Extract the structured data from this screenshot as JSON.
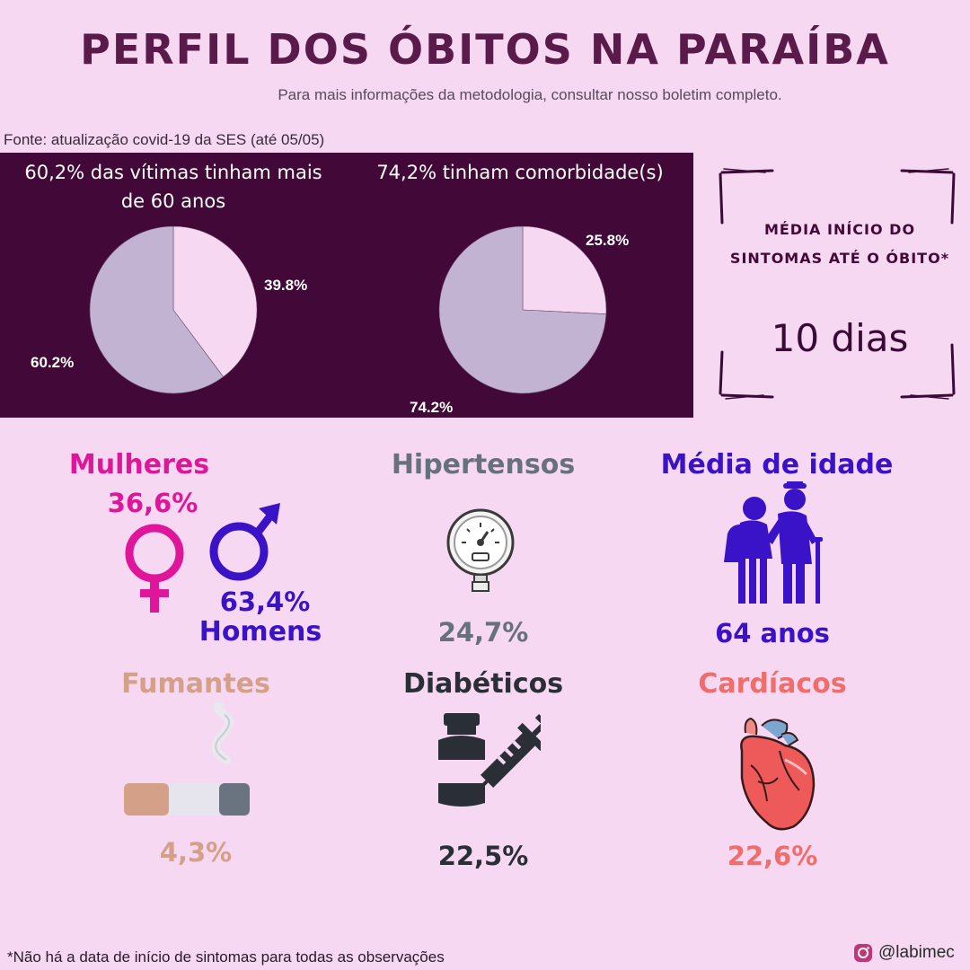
{
  "header": {
    "title": "PERFIL DOS ÓBITOS NA PARAÍBA",
    "subtitle": "Para mais informações da metodologia, consultar nosso boletim completo.",
    "source": "Fonte: atualização covid-19 da SES (até 05/05)"
  },
  "colors": {
    "dark_panel": "#420838",
    "pie_light": "#f6d8f2",
    "pie_gray": "#c3b3d2",
    "women": "#e0169a",
    "men": "#3a12c8",
    "hypertension": "#67717c",
    "smokers": "#d4a088",
    "diabetics": "#2a2e36",
    "cardiac": "#ef6e6c"
  },
  "pies": [
    {
      "title_line1": "60,2% das vítimas tinham mais",
      "title_line2": "de 60 anos",
      "slices": [
        {
          "label": "39.8%",
          "value": 39.8,
          "color": "#f6d8f2"
        },
        {
          "label": "60.2%",
          "value": 60.2,
          "color": "#c3b3d2"
        }
      ]
    },
    {
      "title_line1": "74,2% tinham comorbidade(s)",
      "slices": [
        {
          "label": "25.8%",
          "value": 25.8,
          "color": "#f6d8f2"
        },
        {
          "label": "74.2%",
          "value": 74.2,
          "color": "#c3b3d2"
        }
      ]
    }
  ],
  "symptom_box": {
    "title_line1": "MÉDIA INÍCIO DO",
    "title_line2": "SINTOMAS ATÉ O ÓBITO*",
    "value": "10 dias"
  },
  "stats": {
    "women_label": "Mulheres",
    "women_value": "36,6%",
    "men_value": "63,4%",
    "men_label": "Homens",
    "hypertension_label": "Hipertensos",
    "hypertension_value": "24,7%",
    "age_label": "Média de idade",
    "age_value": "64 anos",
    "smokers_label": "Fumantes",
    "smokers_value": "4,3%",
    "diabetics_label": "Diabéticos",
    "diabetics_value": "22,5%",
    "cardiac_label": "Cardíacos",
    "cardiac_value": "22,6%"
  },
  "footer": {
    "footnote": "*Não há a data de início de sintomas para todas as observações",
    "handle": "@labimec"
  },
  "icons": [
    "female-icon",
    "male-icon",
    "pressure-gauge-icon",
    "elderly-couple-icon",
    "cigarette-icon",
    "vaccine-icon",
    "heart-icon",
    "instagram-icon"
  ]
}
